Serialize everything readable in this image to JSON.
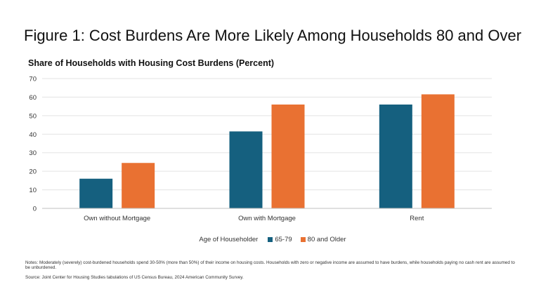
{
  "figure_title": "Figure 1: Cost Burdens Are More Likely Among Households 80 and Over",
  "chart_data": {
    "type": "bar",
    "title": "Share of Households with Housing Cost Burdens (Percent)",
    "categories": [
      "Own without Mortgage",
      "Own with Mortgage",
      "Rent"
    ],
    "series": [
      {
        "name": "65-79",
        "values": [
          16,
          41.5,
          56
        ],
        "color": "#15607f"
      },
      {
        "name": "80 and Older",
        "values": [
          24.5,
          56,
          61.5
        ],
        "color": "#e97132"
      }
    ],
    "ylim": [
      0,
      70
    ],
    "yticks": [
      0,
      10,
      20,
      30,
      40,
      50,
      60,
      70
    ],
    "legend_title": "Age of Householder",
    "legend_position": "bottom",
    "grid": true
  },
  "notes": "Notes: Moderately (severely) cost-burdened households spend 30-50% (more than 50%) of their income on housing costs. Households with zero or negative income are assumed to have burdens, while households paying no cash rent are assumed to be unburdened.",
  "source": "Source: Joint Center for Housing Studies tabulations of US Census Bureau, 2024 American Community Survey."
}
